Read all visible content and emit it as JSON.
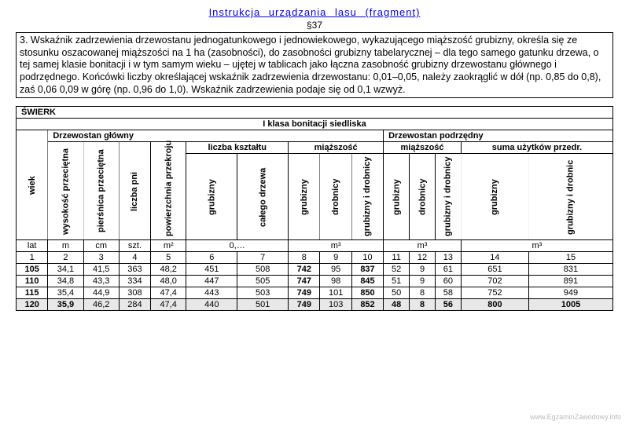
{
  "title": "Instrukcja   urządzania   lasu   (fragment)",
  "section": "§37",
  "paragraph": "3. Wskaźnik zadrzewienia drzewostanu jednogatunkowego i jednowiekowego, wykazującego miąższość grubizny, określa się ze stosunku oszacowanej miąższości na 1 ha (zasobności), do zasobności grubizny tabelarycznej – dla tego samego gatunku drzewa, o tej samej klasie bonitacji i w tym samym wieku – ujętej w tablicach jako łączna zasobność grubizny drzewostanu głównego i podrzędnego.\nKońcówki liczby określającej wskaźnik zadrzewienia drzewostanu: 0,01–0,05, należy zaokrąglić w dół (np. 0,85 do 0,8), zaś 0,06 0,09 w górę (np. 0,96 do 1,0). Wskaźnik zadrzewienia podaje się od 0,1 wzwyż.",
  "table": {
    "species": "ŚWIERK",
    "class_header": "I klasa bonitacji siedliska",
    "group_main": "Drzewostan główny",
    "group_sub": "Drzewostan podrzędny",
    "sub_liczba": "liczba kształtu",
    "sub_miazszosc": "miąższość",
    "sub_miazszosc2": "miąższość",
    "sub_suma": "suma użytków przedr.",
    "cols": {
      "c1": "wiek",
      "c2": "wysokość przeciętna",
      "c3": "pierśnica przeciętna",
      "c4": "liczba pni",
      "c5": "powierzchnia przekroju",
      "c6": "grubizny",
      "c7": "całego drzewa",
      "c8": "grubizny",
      "c9": "drobnicy",
      "c10": "grubizny i drobnicy",
      "c11": "grubizny",
      "c12": "drobnicy",
      "c13": "grubizny i drobnicy",
      "c14": "grubizny",
      "c15": "grubizny i drobnic"
    },
    "units": {
      "u1": "lat",
      "u2": "m",
      "u3": "cm",
      "u4": "szt.",
      "u5": "m²",
      "u6_7": "0,…",
      "u8_10": "m³",
      "u11_13": "m³",
      "u14_15": "m³"
    },
    "idx": {
      "i1": "1",
      "i2": "2",
      "i3": "3",
      "i4": "4",
      "i5": "5",
      "i6": "6",
      "i7": "7",
      "i8": "8",
      "i9": "9",
      "i10": "10",
      "i11": "11",
      "i12": "12",
      "i13": "13",
      "i14": "14",
      "i15": "15"
    },
    "rows": [
      {
        "c1": "105",
        "c2": "34,1",
        "c3": "41,5",
        "c4": "363",
        "c5": "48,2",
        "c6": "451",
        "c7": "508",
        "c8": "742",
        "c9": "95",
        "c10": "837",
        "c11": "52",
        "c12": "9",
        "c13": "61",
        "c14": "651",
        "c15": "831"
      },
      {
        "c1": "110",
        "c2": "34,8",
        "c3": "43,3",
        "c4": "334",
        "c5": "48,0",
        "c6": "447",
        "c7": "505",
        "c8": "747",
        "c9": "98",
        "c10": "845",
        "c11": "51",
        "c12": "9",
        "c13": "60",
        "c14": "702",
        "c15": "891"
      },
      {
        "c1": "115",
        "c2": "35,4",
        "c3": "44,9",
        "c4": "308",
        "c5": "47,4",
        "c6": "443",
        "c7": "503",
        "c8": "749",
        "c9": "101",
        "c10": "850",
        "c11": "50",
        "c12": "8",
        "c13": "58",
        "c14": "752",
        "c15": "949"
      },
      {
        "c1": "120",
        "c2": "35,9",
        "c3": "46,2",
        "c4": "284",
        "c5": "47,4",
        "c6": "440",
        "c7": "501",
        "c8": "749",
        "c9": "103",
        "c10": "852",
        "c11": "48",
        "c12": "8",
        "c13": "56",
        "c14": "800",
        "c15": "1005"
      }
    ]
  },
  "watermark": "www.EgzaminZawodowy.info"
}
